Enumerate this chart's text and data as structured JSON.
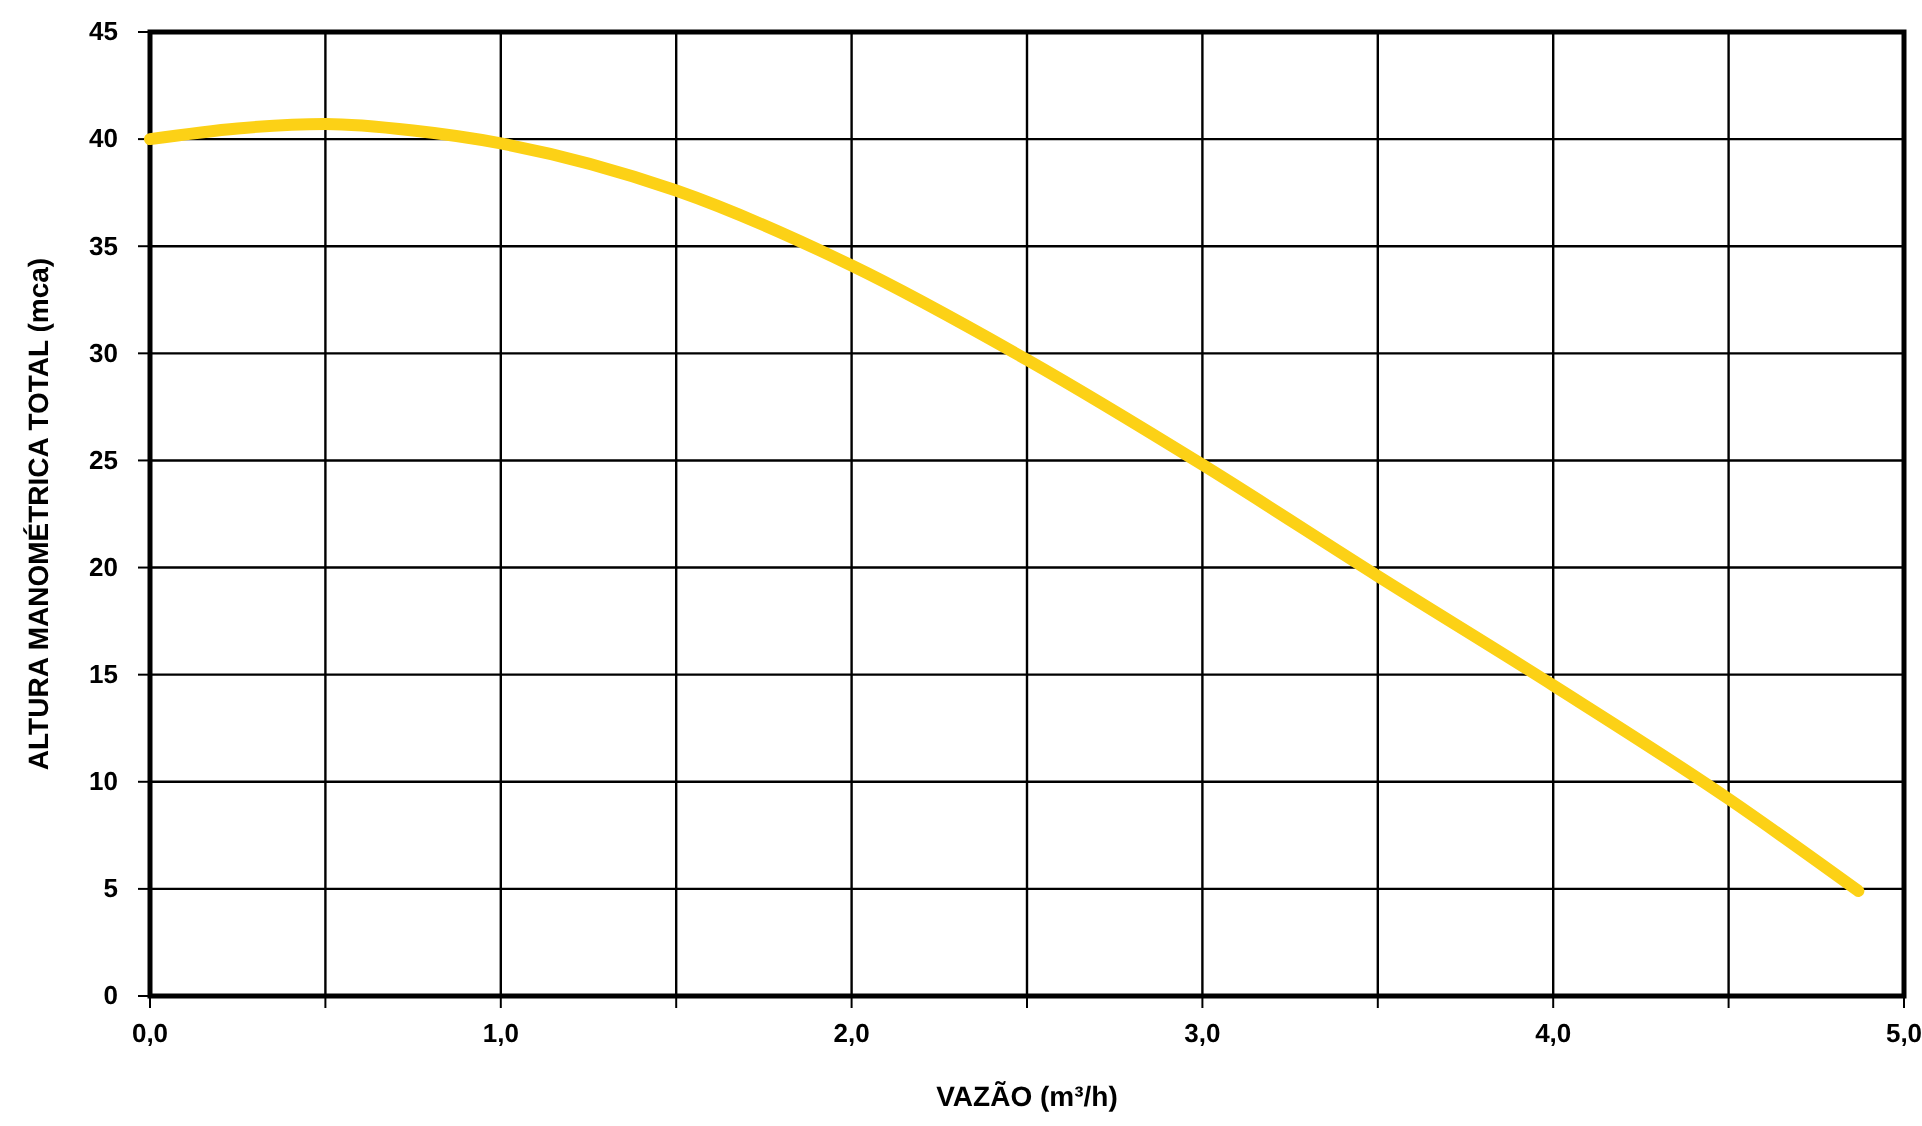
{
  "chart_data": {
    "type": "line",
    "xlabel": "VAZÃO (m³/h)",
    "ylabel": "ALTURA MANOMÉTRICA TOTAL (mca)",
    "x": [
      0,
      0.25,
      0.5,
      0.75,
      1.0,
      1.5,
      2.0,
      2.5,
      3.0,
      3.5,
      4.0,
      4.5,
      4.87
    ],
    "series": [
      {
        "color": "#fcd116",
        "values": [
          40.0,
          40.5,
          40.7,
          40.4,
          39.8,
          37.6,
          34.1,
          29.7,
          24.8,
          19.6,
          14.5,
          9.2,
          4.9
        ]
      }
    ],
    "xlim": [
      0,
      5
    ],
    "ylim": [
      0,
      45
    ],
    "xticks": [
      {
        "value": 0,
        "label": "0,0"
      },
      {
        "value": 0.5,
        "label": null
      },
      {
        "value": 1,
        "label": "1,0"
      },
      {
        "value": 1.5,
        "label": null
      },
      {
        "value": 2,
        "label": "2,0"
      },
      {
        "value": 2.5,
        "label": null
      },
      {
        "value": 3,
        "label": "3,0"
      },
      {
        "value": 3.5,
        "label": null
      },
      {
        "value": 4,
        "label": "4,0"
      },
      {
        "value": 4.5,
        "label": null
      },
      {
        "value": 5,
        "label": "5,0"
      }
    ],
    "yticks": [
      0,
      5,
      10,
      15,
      20,
      25,
      30,
      35,
      40,
      45
    ],
    "grid": true,
    "marker": "none",
    "line_style": "solid"
  }
}
